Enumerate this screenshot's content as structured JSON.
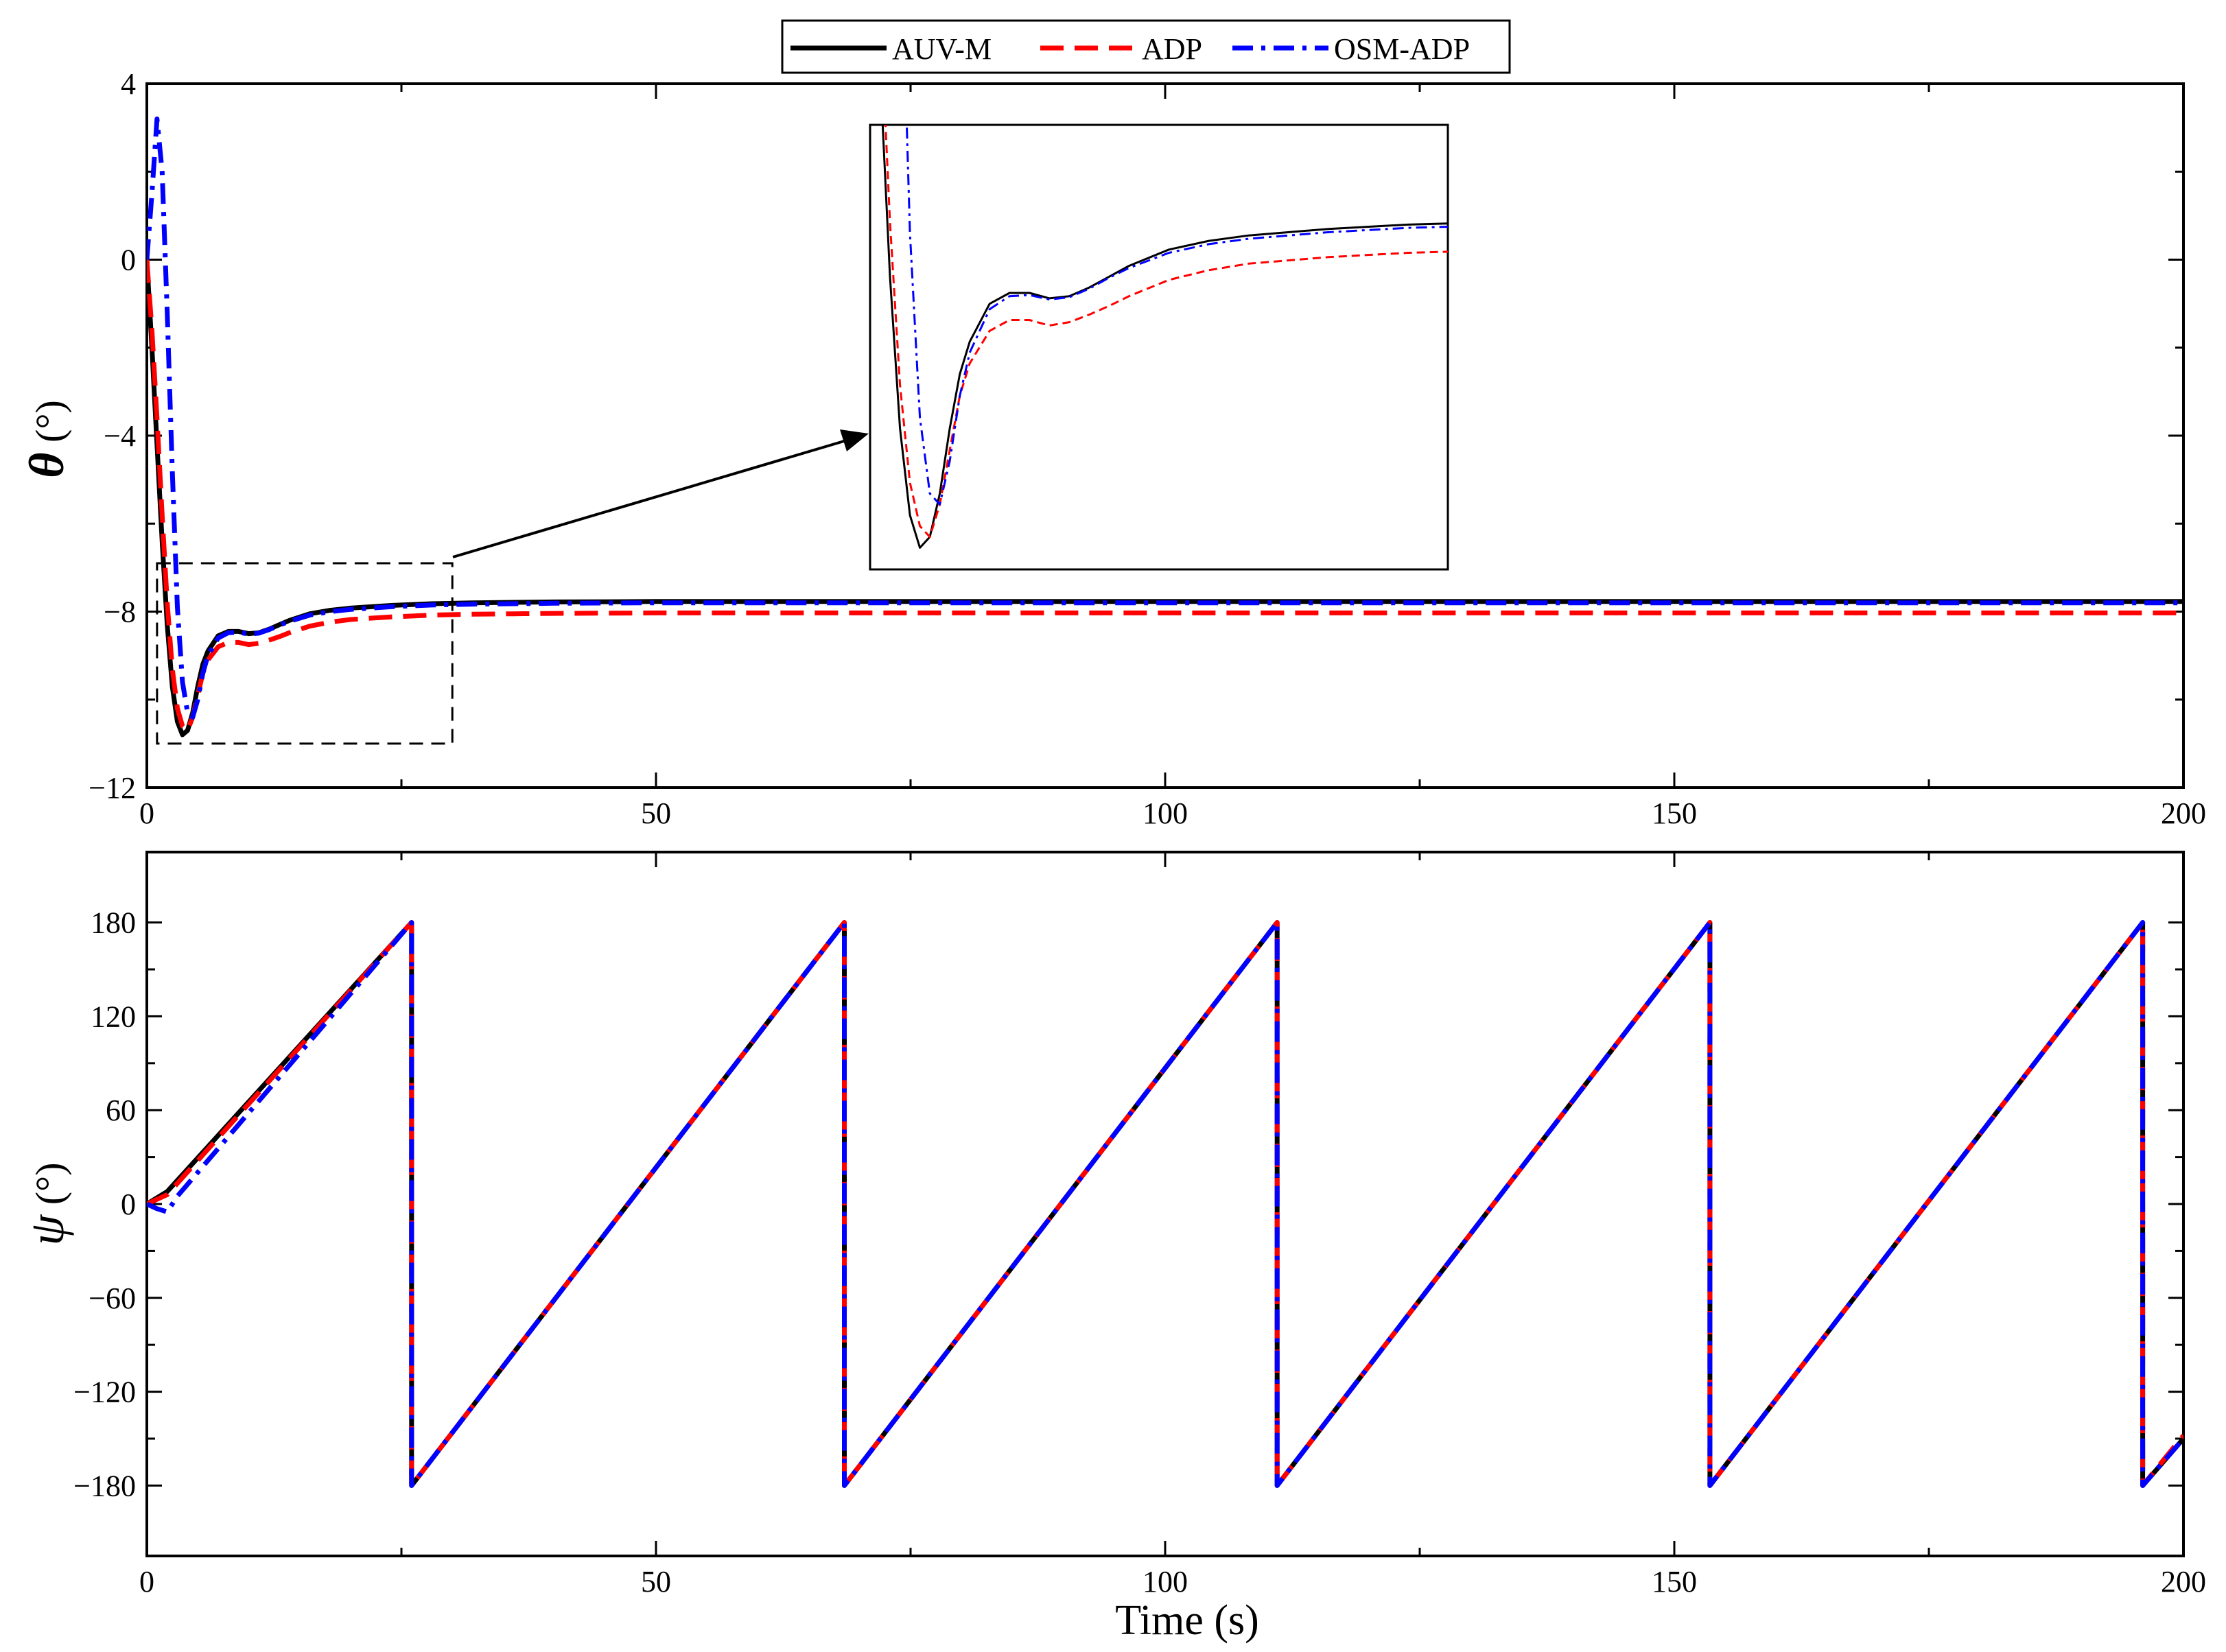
{
  "legend": {
    "entries": [
      {
        "label": "AUV-M",
        "color": "#000000",
        "dash": "solid"
      },
      {
        "label": "ADP",
        "color": "#ff0000",
        "dash": "dashed"
      },
      {
        "label": "OSM-ADP",
        "color": "#0000ff",
        "dash": "dashdot"
      }
    ]
  },
  "chart_data": [
    {
      "type": "line",
      "panel": "top",
      "ylabel_symbol": "θ",
      "ylabel_unit": "(°)",
      "xlim": [
        0,
        200
      ],
      "ylim": [
        -12,
        4
      ],
      "x_ticks": [
        "0",
        "50",
        "100",
        "150",
        "200"
      ],
      "y_ticks": [
        "−12",
        "−8",
        "−4",
        "0",
        "4"
      ],
      "series": [
        {
          "name": "AUV-M",
          "color": "#000000",
          "x": [
            0,
            0.5,
            1,
            1.5,
            2,
            2.5,
            3,
            3.5,
            4,
            4.5,
            5,
            5.5,
            6,
            7,
            8,
            9,
            10,
            11,
            12,
            13,
            14,
            16,
            18,
            20,
            24,
            28,
            32,
            36,
            40,
            50,
            100,
            150,
            200
          ],
          "y": [
            0,
            -2.0,
            -4.2,
            -6.4,
            -8.3,
            -9.7,
            -10.5,
            -10.8,
            -10.7,
            -10.3,
            -9.7,
            -9.2,
            -8.9,
            -8.55,
            -8.45,
            -8.45,
            -8.5,
            -8.48,
            -8.4,
            -8.3,
            -8.2,
            -8.05,
            -7.97,
            -7.92,
            -7.86,
            -7.82,
            -7.8,
            -7.79,
            -7.78,
            -7.77,
            -7.77,
            -7.77,
            -7.77
          ]
        },
        {
          "name": "ADP",
          "color": "#ff0000",
          "x": [
            0,
            0.5,
            1,
            1.5,
            2,
            2.5,
            3,
            3.5,
            4,
            4.5,
            5,
            5.5,
            6,
            7,
            8,
            9,
            10,
            11,
            12,
            13,
            14,
            16,
            18,
            20,
            24,
            28,
            32,
            36,
            40,
            50,
            100,
            150,
            200
          ],
          "y": [
            0,
            -1.6,
            -3.6,
            -5.8,
            -7.8,
            -9.3,
            -10.2,
            -10.6,
            -10.7,
            -10.4,
            -9.9,
            -9.4,
            -9.1,
            -8.8,
            -8.7,
            -8.7,
            -8.75,
            -8.72,
            -8.65,
            -8.57,
            -8.48,
            -8.33,
            -8.24,
            -8.18,
            -8.12,
            -8.08,
            -8.06,
            -8.05,
            -8.04,
            -8.03,
            -8.03,
            -8.03,
            -8.03
          ]
        },
        {
          "name": "OSM-ADP",
          "color": "#0000ff",
          "x": [
            0,
            0.5,
            1,
            1.5,
            2,
            2.5,
            3,
            3.5,
            4,
            4.5,
            5,
            5.5,
            6,
            7,
            8,
            9,
            10,
            11,
            12,
            13,
            14,
            16,
            18,
            20,
            24,
            28,
            32,
            36,
            40,
            50,
            100,
            150,
            200
          ],
          "y": [
            0,
            1.5,
            3.2,
            2.0,
            -1.2,
            -4.8,
            -7.9,
            -9.6,
            -10.3,
            -10.4,
            -10.0,
            -9.4,
            -9.0,
            -8.6,
            -8.48,
            -8.47,
            -8.51,
            -8.49,
            -8.41,
            -8.31,
            -8.22,
            -8.08,
            -8.0,
            -7.95,
            -7.89,
            -7.85,
            -7.83,
            -7.82,
            -7.81,
            -7.8,
            -7.8,
            -7.8,
            -7.8
          ]
        }
      ],
      "zoom_box": {
        "xlim": [
          1,
          30
        ],
        "ylim": [
          -11,
          -6.9
        ]
      },
      "inset_source": {
        "xlim": [
          1,
          30
        ],
        "ylim": [
          -11,
          -6.9
        ]
      }
    },
    {
      "type": "line",
      "panel": "bottom",
      "ylabel_symbol": "ψ",
      "ylabel_unit": "(°)",
      "xlabel": "Time (s)",
      "xlim": [
        0,
        200
      ],
      "ylim": [
        -225,
        225
      ],
      "x_ticks": [
        "0",
        "50",
        "100",
        "150",
        "200"
      ],
      "y_ticks": [
        "−180",
        "−120",
        "−60",
        "0",
        "60",
        "120",
        "180"
      ],
      "y_tick_values": [
        -180,
        -120,
        -60,
        0,
        60,
        120,
        180
      ],
      "series": [
        {
          "name": "AUV-M",
          "color": "#000000",
          "x": [
            0,
            2,
            26,
            26,
            68.5,
            68.5,
            111,
            111,
            153.5,
            153.5,
            196,
            196,
            200
          ],
          "y": [
            0,
            8,
            180,
            -180,
            180,
            -180,
            180,
            -180,
            180,
            -180,
            180,
            -180,
            -150
          ]
        },
        {
          "name": "ADP",
          "color": "#ff0000",
          "x": [
            0,
            2,
            26,
            26,
            68.5,
            68.5,
            111,
            111,
            153.5,
            153.5,
            196,
            196,
            200
          ],
          "y": [
            0,
            6,
            180,
            -180,
            180,
            -180,
            180,
            -180,
            180,
            -180,
            180,
            -180,
            -148
          ]
        },
        {
          "name": "OSM-ADP",
          "color": "#0000ff",
          "x": [
            0,
            1,
            2,
            3,
            26,
            26,
            68.5,
            68.5,
            111,
            111,
            153.5,
            153.5,
            196,
            196,
            200
          ],
          "y": [
            0,
            -3,
            -5,
            5,
            180,
            -180,
            180,
            -180,
            180,
            -180,
            180,
            -180,
            180,
            -180,
            -150
          ]
        }
      ]
    }
  ]
}
